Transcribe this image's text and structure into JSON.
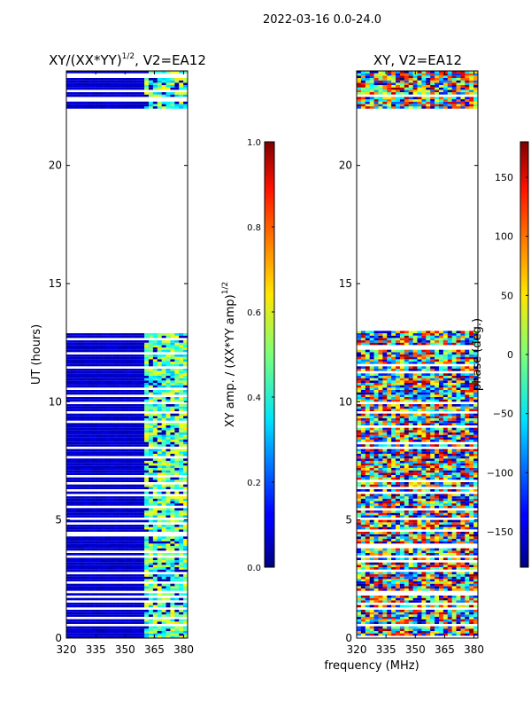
{
  "figure": {
    "suptitle": "2022-03-16 0.0-24.0",
    "xlabel": "frequency (MHz)"
  },
  "chart_data": [
    {
      "type": "heatmap",
      "title_prefix": "XY/(XX*YY)",
      "title_sup": "1/2",
      "title_suffix": ", V2=EA12",
      "ylabel": "UT (hours)",
      "xlim": [
        320,
        382
      ],
      "ylim": [
        0,
        24
      ],
      "xticks": [
        320,
        335,
        350,
        365,
        380
      ],
      "yticks": [
        0,
        5,
        10,
        15,
        20
      ],
      "colorbar": {
        "label_prefix": "XY amp. / (XX*YY amp)",
        "label_sup": "1/2",
        "range": [
          0.0,
          1.0
        ],
        "ticks": [
          "0.0",
          "0.2",
          "0.4",
          "0.6",
          "0.8",
          "1.0"
        ]
      },
      "data_segments_ut": [
        [
          0.0,
          1.9
        ],
        [
          2.0,
          13.0
        ],
        [
          22.4,
          24.0
        ]
      ],
      "bright_band_mhz": [
        359,
        381
      ],
      "typical_low_value": 0.05,
      "typical_band_value": 0.45
    },
    {
      "type": "heatmap",
      "title": "XY, V2=EA12",
      "ylabel": "",
      "xlim": [
        320,
        382
      ],
      "ylim": [
        0,
        24
      ],
      "xticks": [
        320,
        335,
        350,
        365,
        380
      ],
      "yticks": [
        0,
        5,
        10,
        15,
        20
      ],
      "colorbar": {
        "label": "phase (deg.)",
        "range": [
          -180,
          180
        ],
        "ticks": [
          "−150",
          "−100",
          "−50",
          "0",
          "50",
          "100",
          "150"
        ]
      },
      "data_segments_ut": [
        [
          0.0,
          1.9
        ],
        [
          2.0,
          13.0
        ],
        [
          22.4,
          24.0
        ]
      ]
    }
  ]
}
